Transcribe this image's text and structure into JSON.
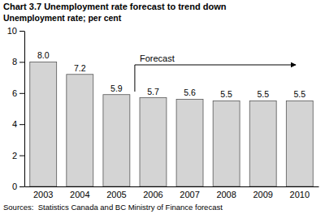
{
  "chart_data": {
    "type": "bar",
    "title": "Chart 3.7 Unemployment rate forecast to trend down",
    "subtitle": "Unemployment rate; per cent",
    "categories": [
      "2003",
      "2004",
      "2005",
      "2006",
      "2007",
      "2008",
      "2009",
      "2010"
    ],
    "values": [
      8.0,
      7.2,
      5.9,
      5.7,
      5.6,
      5.5,
      5.5,
      5.5
    ],
    "value_labels": [
      "8.0",
      "7.2",
      "5.9",
      "5.7",
      "5.6",
      "5.5",
      "5.5",
      "5.5"
    ],
    "data_labels": true,
    "color": "#d4d4d4",
    "ylim": [
      0,
      10
    ],
    "yticks": [
      0,
      2,
      4,
      6,
      8,
      10
    ],
    "grid": false,
    "annotations": [
      {
        "text": "Forecast",
        "x": "2006"
      }
    ],
    "source": "Sources:  Statistics Canada and BC Ministry of Finance forecast"
  }
}
